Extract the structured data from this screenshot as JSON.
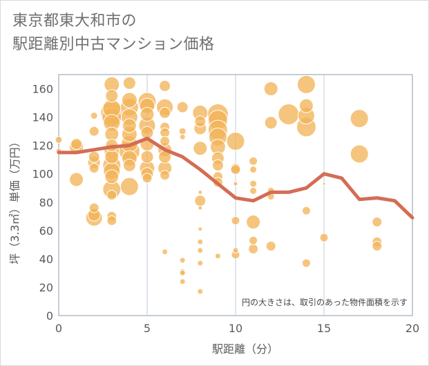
{
  "colors": {
    "bubble_fill": "#f2b458",
    "bubble_stroke": "#ffffff",
    "line": "#d36d55",
    "grid": "#bfcbd8",
    "plot_border": "#8d9aa8"
  },
  "chart_data": {
    "type": "scatter",
    "title": "東京都東大和市の\n駅距離別中古マンション価格",
    "xlabel": "駅距離（分）",
    "ylabel": "坪（3.3㎡）単価（万円）",
    "xlim": [
      0,
      20
    ],
    "ylim": [
      0,
      170
    ],
    "x_ticks": [
      "0",
      "5",
      "10",
      "15",
      "20"
    ],
    "y_ticks": [
      "0",
      "20",
      "40",
      "60",
      "80",
      "100",
      "120",
      "140",
      "160"
    ],
    "grid": true,
    "annotation": "円の大きさは、取引のあった物件面積を示す",
    "series": [
      {
        "kind": "bubble",
        "size_unit": "relative floor area",
        "points": [
          {
            "x": 0,
            "y": 124,
            "s": 5
          },
          {
            "x": 0,
            "y": 116,
            "s": 4
          },
          {
            "x": 1,
            "y": 121,
            "s": 8
          },
          {
            "x": 1,
            "y": 119,
            "s": 10
          },
          {
            "x": 1,
            "y": 96,
            "s": 10
          },
          {
            "x": 2,
            "y": 141,
            "s": 5
          },
          {
            "x": 2,
            "y": 130,
            "s": 7
          },
          {
            "x": 2,
            "y": 112,
            "s": 8
          },
          {
            "x": 2,
            "y": 108,
            "s": 9
          },
          {
            "x": 2,
            "y": 104,
            "s": 7
          },
          {
            "x": 2,
            "y": 76,
            "s": 7
          },
          {
            "x": 2,
            "y": 69,
            "s": 12
          },
          {
            "x": 2,
            "y": 71,
            "s": 9
          },
          {
            "x": 3,
            "y": 163,
            "s": 11
          },
          {
            "x": 3,
            "y": 155,
            "s": 9
          },
          {
            "x": 3,
            "y": 146,
            "s": 13
          },
          {
            "x": 3,
            "y": 143,
            "s": 16
          },
          {
            "x": 3,
            "y": 140,
            "s": 14
          },
          {
            "x": 3,
            "y": 136,
            "s": 12
          },
          {
            "x": 3,
            "y": 128,
            "s": 10
          },
          {
            "x": 3,
            "y": 120,
            "s": 9
          },
          {
            "x": 3,
            "y": 116,
            "s": 11
          },
          {
            "x": 3,
            "y": 112,
            "s": 10
          },
          {
            "x": 3,
            "y": 106,
            "s": 13
          },
          {
            "x": 3,
            "y": 102,
            "s": 12
          },
          {
            "x": 3,
            "y": 98,
            "s": 10
          },
          {
            "x": 3,
            "y": 89,
            "s": 13
          },
          {
            "x": 3,
            "y": 85,
            "s": 7
          },
          {
            "x": 3,
            "y": 70,
            "s": 7
          },
          {
            "x": 3,
            "y": 67,
            "s": 7
          },
          {
            "x": 4,
            "y": 164,
            "s": 9
          },
          {
            "x": 4,
            "y": 152,
            "s": 11
          },
          {
            "x": 4,
            "y": 147,
            "s": 13
          },
          {
            "x": 4,
            "y": 140,
            "s": 12
          },
          {
            "x": 4,
            "y": 134,
            "s": 10
          },
          {
            "x": 4,
            "y": 128,
            "s": 11
          },
          {
            "x": 4,
            "y": 121,
            "s": 12
          },
          {
            "x": 4,
            "y": 116,
            "s": 15
          },
          {
            "x": 4,
            "y": 111,
            "s": 11
          },
          {
            "x": 4,
            "y": 106,
            "s": 9
          },
          {
            "x": 4,
            "y": 91,
            "s": 13
          },
          {
            "x": 5,
            "y": 151,
            "s": 13
          },
          {
            "x": 5,
            "y": 148,
            "s": 11
          },
          {
            "x": 5,
            "y": 142,
            "s": 10
          },
          {
            "x": 5,
            "y": 134,
            "s": 12
          },
          {
            "x": 5,
            "y": 129,
            "s": 9
          },
          {
            "x": 5,
            "y": 121,
            "s": 10
          },
          {
            "x": 5,
            "y": 112,
            "s": 9
          },
          {
            "x": 5,
            "y": 104,
            "s": 11
          },
          {
            "x": 5,
            "y": 100,
            "s": 9
          },
          {
            "x": 5,
            "y": 97,
            "s": 7
          },
          {
            "x": 6,
            "y": 162,
            "s": 8
          },
          {
            "x": 6,
            "y": 147,
            "s": 12
          },
          {
            "x": 6,
            "y": 143,
            "s": 8
          },
          {
            "x": 6,
            "y": 133,
            "s": 7
          },
          {
            "x": 6,
            "y": 129,
            "s": 7
          },
          {
            "x": 6,
            "y": 123,
            "s": 7
          },
          {
            "x": 6,
            "y": 117,
            "s": 10
          },
          {
            "x": 6,
            "y": 112,
            "s": 9
          },
          {
            "x": 6,
            "y": 104,
            "s": 10
          },
          {
            "x": 6,
            "y": 99,
            "s": 7
          },
          {
            "x": 6,
            "y": 45,
            "s": 4
          },
          {
            "x": 7,
            "y": 147,
            "s": 8
          },
          {
            "x": 7,
            "y": 130,
            "s": 5
          },
          {
            "x": 7,
            "y": 126,
            "s": 4
          },
          {
            "x": 7,
            "y": 39,
            "s": 4
          },
          {
            "x": 7,
            "y": 31,
            "s": 4
          },
          {
            "x": 7,
            "y": 30,
            "s": 4
          },
          {
            "x": 7,
            "y": 24,
            "s": 4
          },
          {
            "x": 8,
            "y": 143,
            "s": 11
          },
          {
            "x": 8,
            "y": 137,
            "s": 8
          },
          {
            "x": 8,
            "y": 132,
            "s": 9
          },
          {
            "x": 8,
            "y": 118,
            "s": 10
          },
          {
            "x": 8,
            "y": 87,
            "s": 3
          },
          {
            "x": 8,
            "y": 81,
            "s": 8
          },
          {
            "x": 8,
            "y": 76,
            "s": 3
          },
          {
            "x": 8,
            "y": 61,
            "s": 3
          },
          {
            "x": 8,
            "y": 52,
            "s": 4
          },
          {
            "x": 8,
            "y": 46,
            "s": 4
          },
          {
            "x": 8,
            "y": 37,
            "s": 4
          },
          {
            "x": 8,
            "y": 17,
            "s": 4
          },
          {
            "x": 9,
            "y": 142,
            "s": 15
          },
          {
            "x": 9,
            "y": 138,
            "s": 14
          },
          {
            "x": 9,
            "y": 131,
            "s": 14
          },
          {
            "x": 9,
            "y": 126,
            "s": 13
          },
          {
            "x": 9,
            "y": 119,
            "s": 11
          },
          {
            "x": 9,
            "y": 111,
            "s": 9
          },
          {
            "x": 9,
            "y": 106,
            "s": 8
          },
          {
            "x": 9,
            "y": 98,
            "s": 7
          },
          {
            "x": 9,
            "y": 94,
            "s": 7
          },
          {
            "x": 9,
            "y": 42,
            "s": 4
          },
          {
            "x": 10,
            "y": 123,
            "s": 13
          },
          {
            "x": 10,
            "y": 104,
            "s": 7
          },
          {
            "x": 10,
            "y": 103,
            "s": 7
          },
          {
            "x": 10,
            "y": 93,
            "s": 3
          },
          {
            "x": 10,
            "y": 67,
            "s": 6
          },
          {
            "x": 10,
            "y": 46,
            "s": 4
          },
          {
            "x": 10,
            "y": 43,
            "s": 6
          },
          {
            "x": 11,
            "y": 109,
            "s": 6
          },
          {
            "x": 11,
            "y": 103,
            "s": 5
          },
          {
            "x": 11,
            "y": 93,
            "s": 5
          },
          {
            "x": 11,
            "y": 88,
            "s": 5
          },
          {
            "x": 11,
            "y": 66,
            "s": 10
          },
          {
            "x": 11,
            "y": 53,
            "s": 6
          },
          {
            "x": 11,
            "y": 47,
            "s": 7
          },
          {
            "x": 12,
            "y": 160,
            "s": 10
          },
          {
            "x": 12,
            "y": 136,
            "s": 9
          },
          {
            "x": 12,
            "y": 88,
            "s": 5
          },
          {
            "x": 12,
            "y": 84,
            "s": 5
          },
          {
            "x": 12,
            "y": 49,
            "s": 7
          },
          {
            "x": 13,
            "y": 142,
            "s": 15
          },
          {
            "x": 14,
            "y": 163,
            "s": 13
          },
          {
            "x": 14,
            "y": 148,
            "s": 10
          },
          {
            "x": 14,
            "y": 141,
            "s": 12
          },
          {
            "x": 14,
            "y": 133,
            "s": 14
          },
          {
            "x": 14,
            "y": 74,
            "s": 6
          },
          {
            "x": 14,
            "y": 37,
            "s": 6
          },
          {
            "x": 15,
            "y": 93,
            "s": 2
          },
          {
            "x": 15,
            "y": 55,
            "s": 6
          },
          {
            "x": 17,
            "y": 139,
            "s": 13
          },
          {
            "x": 17,
            "y": 114,
            "s": 13
          },
          {
            "x": 18,
            "y": 66,
            "s": 7
          },
          {
            "x": 18,
            "y": 52,
            "s": 7
          },
          {
            "x": 18,
            "y": 49,
            "s": 7
          }
        ]
      },
      {
        "kind": "line",
        "points": [
          {
            "x": 0,
            "y": 115
          },
          {
            "x": 1,
            "y": 115
          },
          {
            "x": 2,
            "y": 117
          },
          {
            "x": 3,
            "y": 119
          },
          {
            "x": 4,
            "y": 120
          },
          {
            "x": 5,
            "y": 125
          },
          {
            "x": 6,
            "y": 117
          },
          {
            "x": 7,
            "y": 112
          },
          {
            "x": 8,
            "y": 103
          },
          {
            "x": 9,
            "y": 93
          },
          {
            "x": 10,
            "y": 83
          },
          {
            "x": 11,
            "y": 81
          },
          {
            "x": 12,
            "y": 87
          },
          {
            "x": 13,
            "y": 87
          },
          {
            "x": 14,
            "y": 90
          },
          {
            "x": 15,
            "y": 100
          },
          {
            "x": 16,
            "y": 97
          },
          {
            "x": 17,
            "y": 82
          },
          {
            "x": 18,
            "y": 83
          },
          {
            "x": 19,
            "y": 81
          },
          {
            "x": 20,
            "y": 69
          }
        ]
      }
    ]
  }
}
